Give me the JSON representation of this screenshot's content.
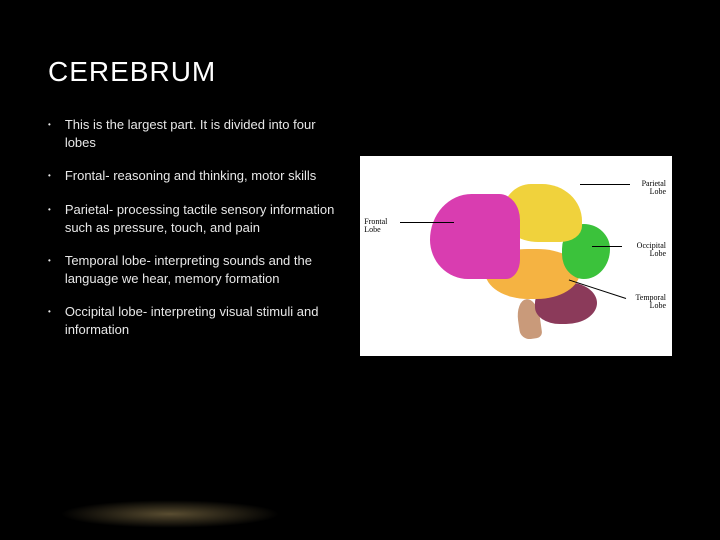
{
  "slide": {
    "title": "CEREBRUM",
    "bullets": [
      "This is the largest part. It is divided into four lobes",
      "Frontal- reasoning and thinking, motor skills",
      "Parietal- processing tactile sensory information such as pressure, touch, and pain",
      "Temporal lobe- interpreting sounds and the language we hear, memory formation",
      "Occipital lobe- interpreting visual stimuli and information"
    ]
  },
  "diagram": {
    "type": "infographic",
    "background_color": "#ffffff",
    "labels": {
      "frontal": "Frontal\nLobe",
      "parietal": "Parietal\nLobe",
      "occipital": "Occipital\nLobe",
      "temporal": "Temporal\nLobe"
    },
    "lobe_colors": {
      "frontal": "#d93db0",
      "parietal": "#f0d23c",
      "occipital": "#3bc23b",
      "temporal": "#f5b342",
      "cerebellum": "#8b3a5a",
      "brainstem": "#c99a7a"
    },
    "label_fontsize": 8,
    "label_color": "#000000"
  },
  "styling": {
    "slide_background": "#000000",
    "title_color": "#ffffff",
    "title_fontsize": 28,
    "body_color": "#e8e8e8",
    "body_fontsize": 13,
    "bullet_marker": "•"
  }
}
